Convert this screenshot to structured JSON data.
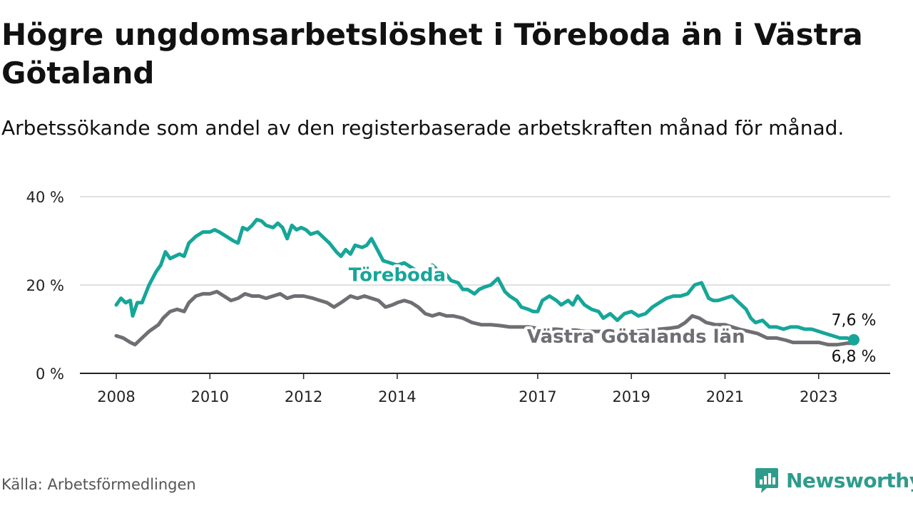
{
  "header": {
    "title": "Högre ungdomsarbetslöshet i Töreboda än i Västra Götaland",
    "subtitle": "Arbetssökande som andel av den registerbaserade arbetskraften månad för månad."
  },
  "footer": {
    "source": "Källa: Arbetsförmedlingen",
    "brand": "Newsworthy"
  },
  "colors": {
    "toreboda": "#16a699",
    "vastra": "#6e6e73",
    "grid": "#d6d6d6",
    "axis": "#222222",
    "brand": "#2e9c8c"
  },
  "chart_data": {
    "type": "line",
    "title": "Högre ungdomsarbetslöshet i Töreboda än i Västra Götaland",
    "xlabel": "",
    "ylabel": "",
    "xlim": [
      2008,
      2024.6
    ],
    "ylim": [
      0,
      40
    ],
    "y_ticks": [
      0,
      20,
      40
    ],
    "y_tick_labels": [
      "0 %",
      "20 %",
      "40 %"
    ],
    "x_ticks": [
      2008,
      2010,
      2012,
      2014,
      2017,
      2019,
      2021,
      2023
    ],
    "x_tick_labels": [
      "2008",
      "2010",
      "2012",
      "2014",
      "2017",
      "2019",
      "2021",
      "2023"
    ],
    "grid": true,
    "series": [
      {
        "name": "Töreboda",
        "label": "Töreboda",
        "end_label": "7,6 %",
        "last_value": 7.6,
        "points": [
          [
            2008.0,
            15.5
          ],
          [
            2008.1,
            17.0
          ],
          [
            2008.2,
            16.0
          ],
          [
            2008.3,
            16.5
          ],
          [
            2008.35,
            13.0
          ],
          [
            2008.45,
            16.0
          ],
          [
            2008.55,
            16.0
          ],
          [
            2008.7,
            20.0
          ],
          [
            2008.85,
            23.0
          ],
          [
            2008.95,
            24.5
          ],
          [
            2009.05,
            27.5
          ],
          [
            2009.15,
            26.0
          ],
          [
            2009.25,
            26.5
          ],
          [
            2009.35,
            27.0
          ],
          [
            2009.45,
            26.5
          ],
          [
            2009.55,
            29.5
          ],
          [
            2009.7,
            31.0
          ],
          [
            2009.85,
            32.0
          ],
          [
            2010.0,
            32.0
          ],
          [
            2010.1,
            32.5
          ],
          [
            2010.2,
            32.0
          ],
          [
            2010.35,
            31.0
          ],
          [
            2010.5,
            30.0
          ],
          [
            2010.6,
            29.5
          ],
          [
            2010.7,
            33.0
          ],
          [
            2010.8,
            32.5
          ],
          [
            2010.9,
            33.5
          ],
          [
            2011.0,
            34.8
          ],
          [
            2011.1,
            34.5
          ],
          [
            2011.2,
            33.5
          ],
          [
            2011.35,
            33.0
          ],
          [
            2011.45,
            34.0
          ],
          [
            2011.55,
            33.0
          ],
          [
            2011.65,
            30.5
          ],
          [
            2011.75,
            33.5
          ],
          [
            2011.85,
            32.5
          ],
          [
            2011.95,
            33.0
          ],
          [
            2012.05,
            32.5
          ],
          [
            2012.15,
            31.5
          ],
          [
            2012.3,
            32.0
          ],
          [
            2012.4,
            31.0
          ],
          [
            2012.55,
            29.5
          ],
          [
            2012.7,
            27.5
          ],
          [
            2012.8,
            26.5
          ],
          [
            2012.9,
            28.0
          ],
          [
            2013.0,
            27.0
          ],
          [
            2013.1,
            29.0
          ],
          [
            2013.25,
            28.5
          ],
          [
            2013.35,
            29.0
          ],
          [
            2013.45,
            30.5
          ],
          [
            2013.55,
            28.5
          ],
          [
            2013.7,
            25.5
          ],
          [
            2013.85,
            25.0
          ],
          [
            2014.0,
            24.5
          ],
          [
            2014.15,
            25.0
          ],
          [
            2014.3,
            24.0
          ],
          [
            2014.45,
            23.0
          ],
          [
            2014.6,
            22.5
          ],
          [
            2014.75,
            24.5
          ],
          [
            2014.85,
            23.5
          ],
          [
            2015.0,
            23.0
          ],
          [
            2015.15,
            21.0
          ],
          [
            2015.3,
            20.5
          ],
          [
            2015.4,
            19.0
          ],
          [
            2015.5,
            19.0
          ],
          [
            2015.65,
            18.0
          ],
          [
            2015.75,
            19.0
          ],
          [
            2015.85,
            19.5
          ],
          [
            2016.0,
            20.0
          ],
          [
            2016.15,
            21.5
          ],
          [
            2016.3,
            18.5
          ],
          [
            2016.4,
            17.5
          ],
          [
            2016.55,
            16.5
          ],
          [
            2016.65,
            15.0
          ],
          [
            2016.8,
            14.5
          ],
          [
            2016.9,
            14.0
          ],
          [
            2017.0,
            14.0
          ],
          [
            2017.1,
            16.5
          ],
          [
            2017.25,
            17.5
          ],
          [
            2017.4,
            16.5
          ],
          [
            2017.5,
            15.5
          ],
          [
            2017.65,
            16.5
          ],
          [
            2017.75,
            15.5
          ],
          [
            2017.85,
            17.5
          ],
          [
            2018.0,
            15.5
          ],
          [
            2018.15,
            14.5
          ],
          [
            2018.3,
            14.0
          ],
          [
            2018.4,
            12.5
          ],
          [
            2018.55,
            13.5
          ],
          [
            2018.7,
            12.0
          ],
          [
            2018.85,
            13.5
          ],
          [
            2019.0,
            14.0
          ],
          [
            2019.15,
            13.0
          ],
          [
            2019.3,
            13.5
          ],
          [
            2019.45,
            15.0
          ],
          [
            2019.6,
            16.0
          ],
          [
            2019.75,
            17.0
          ],
          [
            2019.9,
            17.5
          ],
          [
            2020.05,
            17.5
          ],
          [
            2020.2,
            18.0
          ],
          [
            2020.35,
            20.0
          ],
          [
            2020.5,
            20.5
          ],
          [
            2020.65,
            17.0
          ],
          [
            2020.75,
            16.5
          ],
          [
            2020.85,
            16.5
          ],
          [
            2021.0,
            17.0
          ],
          [
            2021.15,
            17.5
          ],
          [
            2021.3,
            16.0
          ],
          [
            2021.45,
            14.5
          ],
          [
            2021.55,
            12.5
          ],
          [
            2021.65,
            11.5
          ],
          [
            2021.8,
            12.0
          ],
          [
            2021.95,
            10.5
          ],
          [
            2022.1,
            10.5
          ],
          [
            2022.25,
            10.0
          ],
          [
            2022.4,
            10.5
          ],
          [
            2022.55,
            10.5
          ],
          [
            2022.7,
            10.0
          ],
          [
            2022.85,
            10.0
          ],
          [
            2023.0,
            9.5
          ],
          [
            2023.15,
            9.0
          ],
          [
            2023.3,
            8.5
          ],
          [
            2023.45,
            8.0
          ],
          [
            2023.6,
            8.0
          ],
          [
            2023.75,
            7.6
          ]
        ]
      },
      {
        "name": "Västra Götalands län",
        "label": "Västra Götalands län",
        "end_label": "6,8 %",
        "last_value": 6.8,
        "points": [
          [
            2008.0,
            8.5
          ],
          [
            2008.15,
            8.0
          ],
          [
            2008.3,
            7.0
          ],
          [
            2008.4,
            6.5
          ],
          [
            2008.5,
            7.5
          ],
          [
            2008.7,
            9.5
          ],
          [
            2008.9,
            11.0
          ],
          [
            2009.0,
            12.5
          ],
          [
            2009.15,
            14.0
          ],
          [
            2009.3,
            14.5
          ],
          [
            2009.45,
            14.0
          ],
          [
            2009.55,
            16.0
          ],
          [
            2009.7,
            17.5
          ],
          [
            2009.85,
            18.0
          ],
          [
            2010.0,
            18.0
          ],
          [
            2010.15,
            18.5
          ],
          [
            2010.3,
            17.5
          ],
          [
            2010.45,
            16.5
          ],
          [
            2010.6,
            17.0
          ],
          [
            2010.75,
            18.0
          ],
          [
            2010.9,
            17.5
          ],
          [
            2011.05,
            17.5
          ],
          [
            2011.2,
            17.0
          ],
          [
            2011.35,
            17.5
          ],
          [
            2011.5,
            18.0
          ],
          [
            2011.65,
            17.0
          ],
          [
            2011.8,
            17.5
          ],
          [
            2012.0,
            17.5
          ],
          [
            2012.2,
            17.0
          ],
          [
            2012.35,
            16.5
          ],
          [
            2012.5,
            16.0
          ],
          [
            2012.65,
            15.0
          ],
          [
            2012.8,
            16.0
          ],
          [
            2013.0,
            17.5
          ],
          [
            2013.15,
            17.0
          ],
          [
            2013.3,
            17.5
          ],
          [
            2013.45,
            17.0
          ],
          [
            2013.6,
            16.5
          ],
          [
            2013.75,
            15.0
          ],
          [
            2013.9,
            15.5
          ],
          [
            2014.0,
            16.0
          ],
          [
            2014.15,
            16.5
          ],
          [
            2014.3,
            16.0
          ],
          [
            2014.45,
            15.0
          ],
          [
            2014.6,
            13.5
          ],
          [
            2014.75,
            13.0
          ],
          [
            2014.9,
            13.5
          ],
          [
            2015.05,
            13.0
          ],
          [
            2015.2,
            13.0
          ],
          [
            2015.4,
            12.5
          ],
          [
            2015.6,
            11.5
          ],
          [
            2015.8,
            11.0
          ],
          [
            2016.0,
            11.0
          ],
          [
            2016.2,
            10.8
          ],
          [
            2016.4,
            10.5
          ],
          [
            2016.6,
            10.5
          ],
          [
            2016.8,
            10.5
          ],
          [
            2017.0,
            10.2
          ],
          [
            2017.2,
            10.0
          ],
          [
            2017.4,
            10.0
          ],
          [
            2017.6,
            9.8
          ],
          [
            2017.8,
            9.8
          ],
          [
            2018.0,
            9.5
          ],
          [
            2018.2,
            9.5
          ],
          [
            2018.4,
            9.5
          ],
          [
            2018.6,
            9.3
          ],
          [
            2018.8,
            9.3
          ],
          [
            2019.0,
            9.5
          ],
          [
            2019.2,
            9.6
          ],
          [
            2019.4,
            9.8
          ],
          [
            2019.6,
            10.0
          ],
          [
            2019.8,
            10.2
          ],
          [
            2020.0,
            10.5
          ],
          [
            2020.15,
            11.5
          ],
          [
            2020.3,
            13.0
          ],
          [
            2020.45,
            12.5
          ],
          [
            2020.6,
            11.5
          ],
          [
            2020.8,
            11.0
          ],
          [
            2021.0,
            11.0
          ],
          [
            2021.15,
            10.5
          ],
          [
            2021.3,
            10.0
          ],
          [
            2021.5,
            9.5
          ],
          [
            2021.7,
            9.0
          ],
          [
            2021.9,
            8.0
          ],
          [
            2022.1,
            8.0
          ],
          [
            2022.3,
            7.5
          ],
          [
            2022.45,
            7.0
          ],
          [
            2022.6,
            7.0
          ],
          [
            2022.8,
            7.0
          ],
          [
            2023.0,
            7.0
          ],
          [
            2023.2,
            6.5
          ],
          [
            2023.4,
            6.5
          ],
          [
            2023.6,
            6.8
          ],
          [
            2023.75,
            6.8
          ]
        ]
      }
    ],
    "annotations": [
      "7,6 %",
      "6,8 %"
    ]
  }
}
